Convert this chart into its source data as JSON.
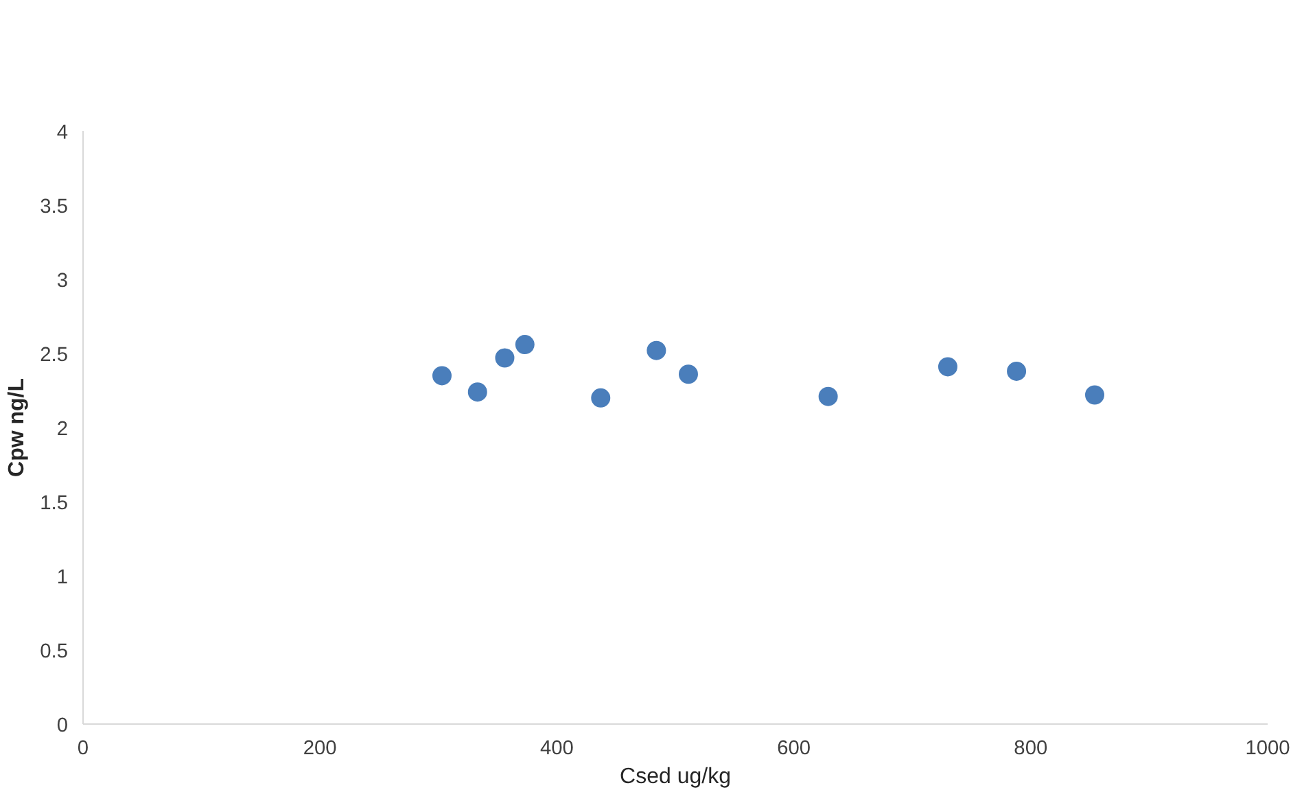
{
  "chart_data": {
    "type": "scatter",
    "xlabel": "Csed ug/kg",
    "ylabel": "Cpw ng/L",
    "x": [
      303,
      333,
      356,
      373,
      437,
      484,
      511,
      629,
      730,
      788,
      854
    ],
    "series": [
      {
        "color": "#4a7ebb",
        "values": [
          2.35,
          2.24,
          2.47,
          2.56,
          2.2,
          2.52,
          2.36,
          2.21,
          2.41,
          2.38,
          2.22
        ]
      }
    ],
    "xlim": [
      0,
      1000
    ],
    "xticks": [
      0,
      200,
      400,
      600,
      800,
      1000
    ],
    "ylim": [
      0,
      4
    ],
    "yticks": [
      0,
      0.5,
      1,
      1.5,
      2,
      2.5,
      3,
      3.5,
      4
    ],
    "grid": false,
    "marker": "circle"
  }
}
